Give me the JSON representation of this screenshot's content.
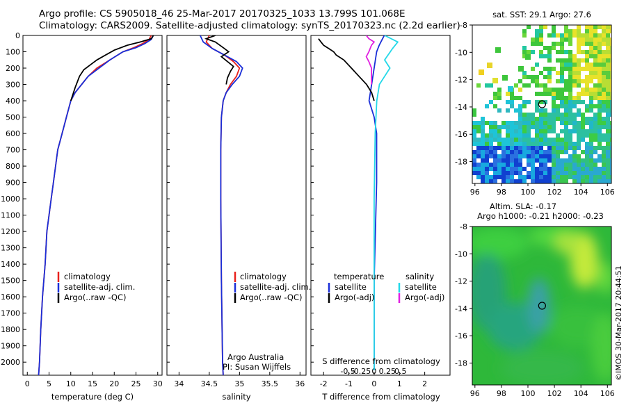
{
  "header": {
    "title_line1": "Argo profile: CS 5905018_46 25-Mar-2017 20170325_1033 13.799S 101.068E",
    "title_line2": "Climatology: CARS2009. Satellite-adjusted climatology: synTS_20170323.nc (2.2d earlier)"
  },
  "colors": {
    "climatology": "#e8201c",
    "satellite": "#1a2fd8",
    "argo": "#000000",
    "salinity_satellite": "#22d8e8",
    "salinity_argo": "#e020e0"
  },
  "chart_data": [
    {
      "type": "line",
      "panel": "temperature",
      "xlabel": "temperature (deg C)",
      "xlim": [
        -1,
        31
      ],
      "xticks": [
        0,
        5,
        10,
        15,
        20,
        25,
        30
      ],
      "ylim": [
        2080,
        0
      ],
      "yticks": [
        0,
        100,
        200,
        300,
        400,
        500,
        600,
        700,
        800,
        900,
        1000,
        1100,
        1200,
        1300,
        1400,
        1500,
        1600,
        1700,
        1800,
        1900,
        2000
      ],
      "legend": [
        "climatology",
        "satellite-adj. clim.",
        "Argo(..raw -QC)"
      ],
      "series": [
        {
          "name": "climatology",
          "color_key": "climatology",
          "points": [
            [
              28.5,
              0
            ],
            [
              28,
              25
            ],
            [
              26.5,
              50
            ],
            [
              24.5,
              75
            ],
            [
              22,
              100
            ],
            [
              19,
              150
            ],
            [
              16,
              200
            ],
            [
              14,
              250
            ],
            [
              12.5,
              300
            ],
            [
              11,
              350
            ],
            [
              10,
              400
            ],
            [
              9,
              500
            ],
            [
              8,
              600
            ],
            [
              7,
              700
            ],
            [
              6.5,
              800
            ],
            [
              6,
              900
            ],
            [
              5.5,
              1000
            ],
            [
              5,
              1100
            ],
            [
              4.5,
              1200
            ],
            [
              4.1,
              1400
            ],
            [
              3.5,
              1600
            ],
            [
              3.1,
              1800
            ],
            [
              2.8,
              2000
            ],
            [
              2.6,
              2080
            ]
          ]
        },
        {
          "name": "satellite-adj. clim.",
          "color_key": "satellite",
          "points": [
            [
              29,
              0
            ],
            [
              28.5,
              25
            ],
            [
              27,
              50
            ],
            [
              25,
              75
            ],
            [
              22,
              100
            ],
            [
              19,
              150
            ],
            [
              16.5,
              200
            ],
            [
              14,
              250
            ],
            [
              12.5,
              300
            ],
            [
              11,
              350
            ],
            [
              10,
              400
            ],
            [
              9,
              500
            ],
            [
              8,
              600
            ],
            [
              7,
              700
            ],
            [
              6.5,
              800
            ],
            [
              6,
              900
            ],
            [
              5.5,
              1000
            ],
            [
              5,
              1100
            ],
            [
              4.5,
              1200
            ],
            [
              4.1,
              1400
            ],
            [
              3.5,
              1600
            ],
            [
              3.1,
              1800
            ],
            [
              2.8,
              2000
            ],
            [
              2.6,
              2080
            ]
          ]
        },
        {
          "name": "Argo(..raw -QC)",
          "color_key": "argo",
          "points": [
            [
              29,
              0
            ],
            [
              28.5,
              20
            ],
            [
              26,
              40
            ],
            [
              23,
              60
            ],
            [
              20,
              90
            ],
            [
              18,
              120
            ],
            [
              16,
              150
            ],
            [
              14.5,
              180
            ],
            [
              13,
              210
            ],
            [
              12,
              250
            ],
            [
              11,
              320
            ],
            [
              10,
              400
            ]
          ]
        }
      ]
    },
    {
      "type": "line",
      "panel": "salinity",
      "xlabel": "salinity",
      "xlim": [
        33.8,
        36.1
      ],
      "xticks": [
        34,
        34.5,
        35,
        35.5,
        36
      ],
      "ylim": [
        2080,
        0
      ],
      "legend": [
        "climatology",
        "satellite-adj. clim.",
        "Argo(..raw -QC)"
      ],
      "annotations": [
        "Argo Australia",
        "PI: Susan Wijffels"
      ],
      "series": [
        {
          "name": "climatology",
          "color_key": "climatology",
          "points": [
            [
              34.5,
              0
            ],
            [
              34.45,
              40
            ],
            [
              34.55,
              80
            ],
            [
              34.75,
              120
            ],
            [
              34.9,
              160
            ],
            [
              35.0,
              200
            ],
            [
              34.95,
              250
            ],
            [
              34.85,
              300
            ],
            [
              34.78,
              350
            ],
            [
              34.73,
              400
            ],
            [
              34.7,
              500
            ],
            [
              34.69,
              700
            ],
            [
              34.69,
              1000
            ],
            [
              34.7,
              1500
            ],
            [
              34.72,
              2000
            ],
            [
              34.73,
              2080
            ]
          ]
        },
        {
          "name": "satellite-adj. clim.",
          "color_key": "satellite",
          "points": [
            [
              34.35,
              0
            ],
            [
              34.4,
              40
            ],
            [
              34.55,
              80
            ],
            [
              34.75,
              120
            ],
            [
              34.95,
              160
            ],
            [
              35.05,
              200
            ],
            [
              35.0,
              250
            ],
            [
              34.88,
              300
            ],
            [
              34.78,
              350
            ],
            [
              34.73,
              400
            ],
            [
              34.7,
              500
            ],
            [
              34.69,
              700
            ],
            [
              34.69,
              1000
            ],
            [
              34.7,
              1500
            ],
            [
              34.72,
              2000
            ],
            [
              34.73,
              2080
            ]
          ]
        },
        {
          "name": "Argo(..raw -QC)",
          "color_key": "argo",
          "points": [
            [
              34.6,
              0
            ],
            [
              34.45,
              20
            ],
            [
              34.6,
              40
            ],
            [
              34.75,
              80
            ],
            [
              34.82,
              100
            ],
            [
              34.7,
              130
            ],
            [
              34.8,
              160
            ],
            [
              34.9,
              190
            ],
            [
              34.85,
              220
            ],
            [
              34.8,
              260
            ],
            [
              34.78,
              300
            ]
          ]
        }
      ]
    },
    {
      "type": "line",
      "panel": "difference",
      "xlabel_bottom": "T difference from climatology",
      "xlabel_top": "S difference from climatology",
      "xlim_T": [
        -2.5,
        3
      ],
      "xticks_T": [
        -2,
        -1,
        0,
        1,
        2
      ],
      "xticks_S": [
        -0.5,
        -0.25,
        0,
        0.25,
        0.5
      ],
      "ylim": [
        2080,
        0
      ],
      "legend_left_title": "temperature",
      "legend_right_title": "salinity",
      "legend": [
        "satellite",
        "Argo(-adj)",
        "satellite",
        "Argo(-adj)"
      ],
      "series": [
        {
          "name": "T satellite",
          "color_key": "satellite",
          "points": [
            [
              0.4,
              0
            ],
            [
              0.3,
              30
            ],
            [
              0.2,
              60
            ],
            [
              0.1,
              100
            ],
            [
              0.0,
              200
            ],
            [
              -0.1,
              300
            ],
            [
              -0.2,
              400
            ],
            [
              0.0,
              500
            ],
            [
              0.1,
              600
            ],
            [
              0.1,
              700
            ],
            [
              0.1,
              900
            ],
            [
              0.05,
              1200
            ],
            [
              0.0,
              1500
            ],
            [
              0.0,
              2050
            ]
          ]
        },
        {
          "name": "T Argo(-adj)",
          "color_key": "argo",
          "points": [
            [
              -2.2,
              20
            ],
            [
              -2.1,
              40
            ],
            [
              -2.0,
              60
            ],
            [
              -1.8,
              80
            ],
            [
              -1.6,
              100
            ],
            [
              -1.5,
              120
            ],
            [
              -1.2,
              150
            ],
            [
              -0.9,
              200
            ],
            [
              -0.6,
              250
            ],
            [
              -0.3,
              300
            ],
            [
              -0.1,
              350
            ],
            [
              0.0,
              400
            ]
          ]
        },
        {
          "name": "S satellite",
          "color_key": "salinity_satellite",
          "points": [
            [
              0.2,
              0
            ],
            [
              0.45,
              40
            ],
            [
              0.35,
              80
            ],
            [
              0.2,
              150
            ],
            [
              0.3,
              200
            ],
            [
              0.2,
              250
            ],
            [
              0.1,
              300
            ],
            [
              0.05,
              400
            ],
            [
              0.02,
              600
            ],
            [
              0.0,
              1000
            ],
            [
              0.0,
              2050
            ]
          ]
        },
        {
          "name": "S Argo(-adj)",
          "color_key": "salinity_argo",
          "points": [
            [
              -0.15,
              0
            ],
            [
              -0.1,
              20
            ],
            [
              0.0,
              40
            ],
            [
              -0.05,
              60
            ],
            [
              -0.1,
              100
            ],
            [
              -0.15,
              130
            ],
            [
              -0.1,
              160
            ],
            [
              -0.05,
              200
            ],
            [
              -0.05,
              250
            ],
            [
              -0.05,
              300
            ]
          ]
        }
      ]
    },
    {
      "type": "heatmap",
      "panel": "sst_map",
      "title": "sat. SST: 29.1  Argo: 27.6",
      "xlim": [
        95.8,
        106.3
      ],
      "ylim": [
        -19.6,
        -8
      ],
      "xticks": [
        96,
        98,
        100,
        102,
        104,
        106
      ],
      "yticks": [
        -8,
        -10,
        -12,
        -14,
        -16,
        -18
      ],
      "argo_position": [
        101.07,
        -13.8
      ]
    },
    {
      "type": "heatmap",
      "panel": "sla_map",
      "title_line1": "Altim. SLA: -0.17",
      "title_line2": "Argo h1000: -0.21  h2000: -0.23",
      "xlim": [
        95.8,
        106.3
      ],
      "ylim": [
        -19.6,
        -8
      ],
      "xticks": [
        96,
        98,
        100,
        102,
        104,
        106
      ],
      "yticks": [
        -8,
        -10,
        -12,
        -14,
        -16,
        -18
      ],
      "argo_position": [
        101.07,
        -13.8
      ]
    }
  ],
  "credit": "©IMOS 30-Mar-2017 20:44:51"
}
